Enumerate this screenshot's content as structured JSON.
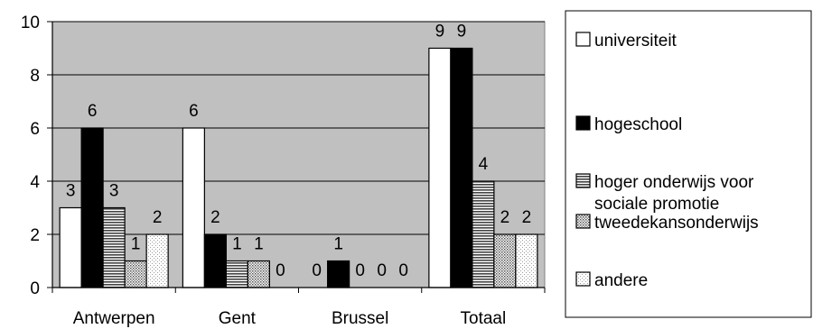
{
  "chart_data": {
    "type": "bar",
    "title": "",
    "xlabel": "",
    "ylabel": "",
    "categories": [
      "Antwerpen",
      "Gent",
      "Brussel",
      "Totaal"
    ],
    "ylim": [
      0,
      10
    ],
    "yticks": [
      "0",
      "2",
      "4",
      "6",
      "8",
      "10"
    ],
    "grid": true,
    "legend_position": "right",
    "series": [
      {
        "name": "universiteit",
        "values": [
          3,
          6,
          0,
          9
        ],
        "labels": [
          "3",
          "6",
          "0",
          "9"
        ],
        "fill": "#ffffff",
        "pattern": "solid"
      },
      {
        "name": "hogeschool",
        "values": [
          6,
          2,
          1,
          9
        ],
        "labels": [
          "6",
          "2",
          "1",
          "9"
        ],
        "fill": "#000000",
        "pattern": "solid"
      },
      {
        "name_lines": [
          "hoger onderwijs voor",
          "sociale promotie"
        ],
        "values": [
          3,
          1,
          0,
          4
        ],
        "labels": [
          "3",
          "1",
          "0",
          "4"
        ],
        "fill": "#ffffff",
        "pattern": "hstripes"
      },
      {
        "name": "tweedekansonderwijs",
        "values": [
          1,
          1,
          0,
          2
        ],
        "labels": [
          "1",
          "1",
          "0",
          "2"
        ],
        "fill": "#ffffff",
        "pattern": "dense-dots"
      },
      {
        "name": "andere",
        "values": [
          2,
          0,
          0,
          2
        ],
        "labels": [
          "2",
          "0",
          "0",
          "2"
        ],
        "fill": "#ffffff",
        "pattern": "light-dots"
      }
    ],
    "plot_background": "#c0c0c0"
  }
}
